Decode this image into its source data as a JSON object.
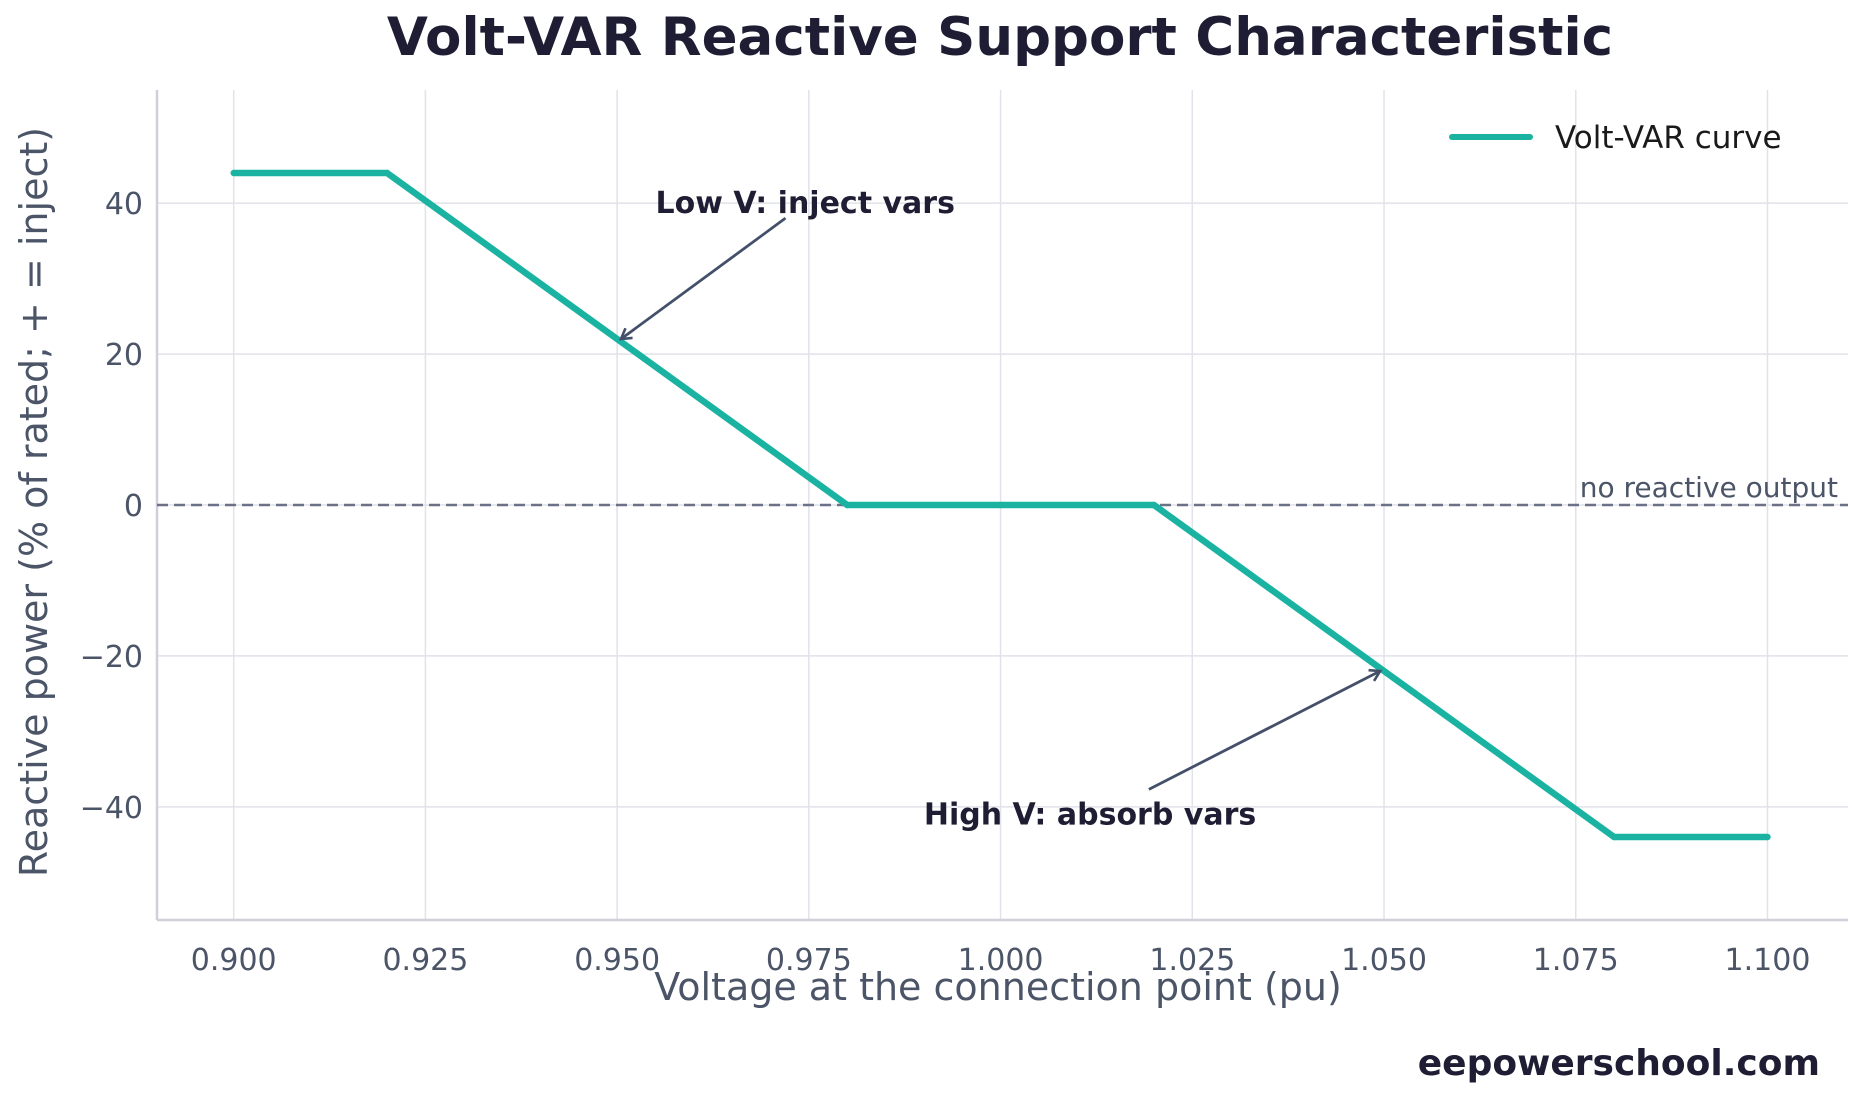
{
  "chart_data": {
    "type": "line",
    "title": "Volt-VAR Reactive Support Characteristic",
    "xlabel": "Voltage at the connection point (pu)",
    "ylabel": "Reactive power (% of rated; + = inject)",
    "xlim": [
      0.89,
      1.1105
    ],
    "ylim": [
      -55,
      55
    ],
    "grid": true,
    "legend_position": "top-right",
    "x_ticks": [
      0.9,
      0.925,
      0.95,
      0.975,
      1.0,
      1.025,
      1.05,
      1.075,
      1.1
    ],
    "x_tick_labels": [
      "0.900",
      "0.925",
      "0.950",
      "0.975",
      "1.000",
      "1.025",
      "1.050",
      "1.075",
      "1.100"
    ],
    "y_ticks": [
      -40,
      -20,
      0,
      20,
      40
    ],
    "y_tick_labels": [
      "−40",
      "−20",
      "0",
      "20",
      "40"
    ],
    "series": [
      {
        "name": "Volt-VAR curve",
        "color": "#1ab3a2",
        "x": [
          0.9,
          0.92,
          0.98,
          1.02,
          1.08,
          1.1
        ],
        "y": [
          44,
          44,
          0,
          0,
          -44,
          -44
        ]
      }
    ],
    "reference_line": {
      "y": 0,
      "label": "no reactive output",
      "color": "#6b7186",
      "style": "dashed"
    },
    "annotations": [
      {
        "text": "Low V: inject vars",
        "point": [
          0.9505,
          22.0
        ],
        "text_at": [
          0.955,
          40.0
        ]
      },
      {
        "text": "High V: absorb vars",
        "point": [
          1.0495,
          -22.0
        ],
        "text_at": [
          0.99,
          -41.0
        ]
      }
    ]
  },
  "watermark": "eepowerschool.com"
}
